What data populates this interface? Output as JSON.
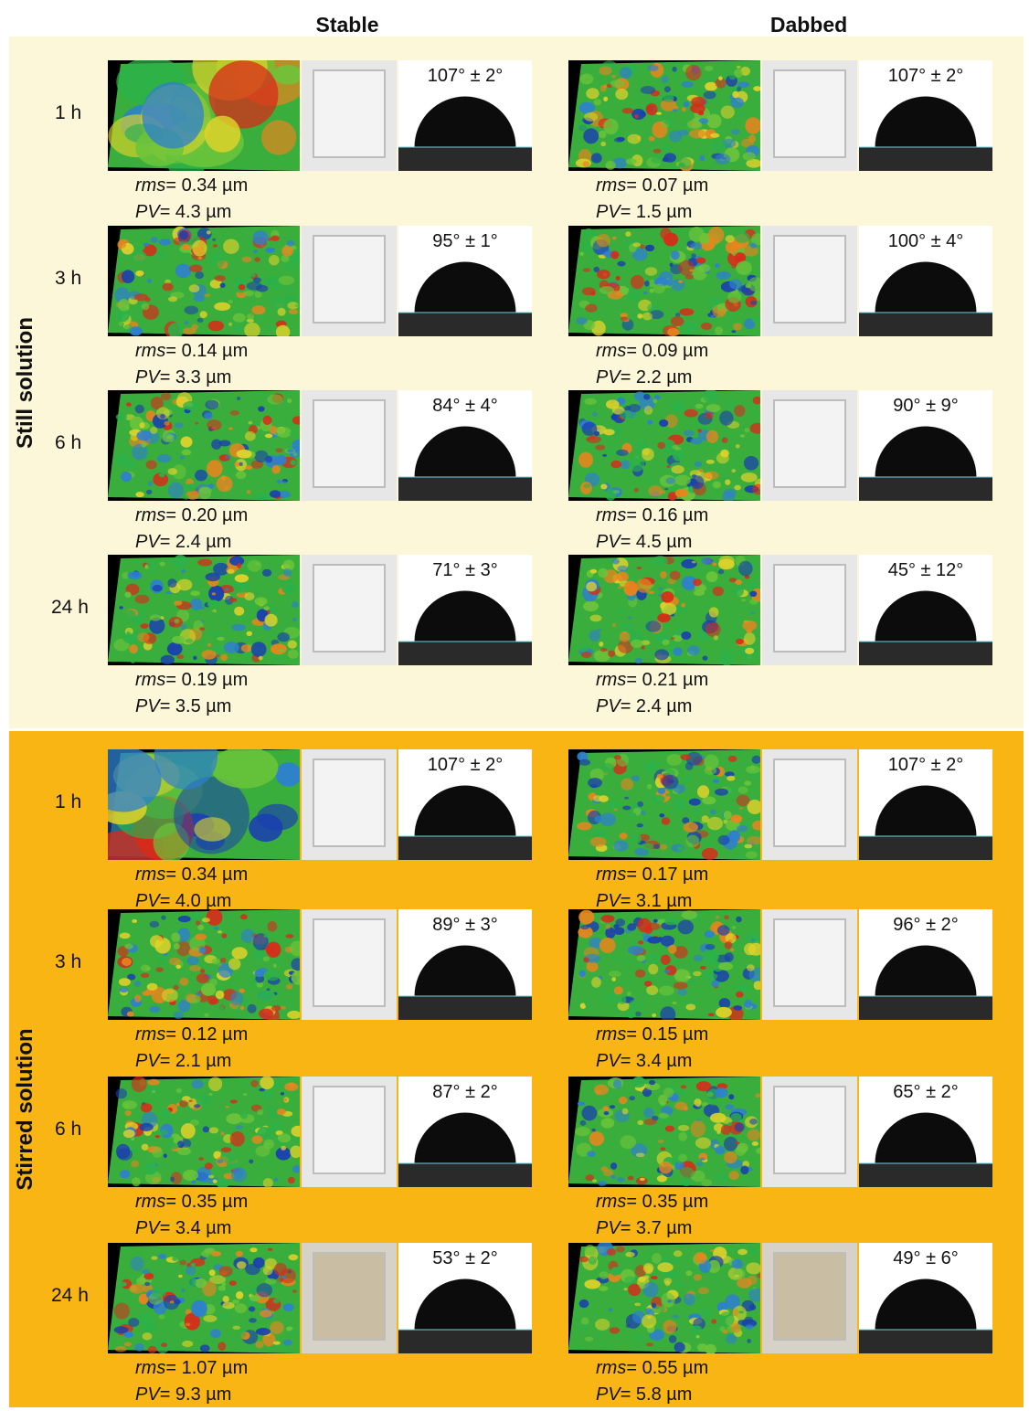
{
  "column_titles": {
    "stable": "Stable",
    "dabbed": "Dabbed"
  },
  "sections": [
    {
      "label": "Still solution",
      "rows": [
        {
          "time": "1 h",
          "stable": {
            "angle": "107° ± 2°",
            "rms": "= 0.34 µm",
            "pv": "= 4.3 µm"
          },
          "dabbed": {
            "angle": "107° ± 2°",
            "rms": "= 0.07 µm",
            "pv": "= 1.5 µm"
          }
        },
        {
          "time": "3 h",
          "stable": {
            "angle": "95° ± 1°",
            "rms": "= 0.14 µm",
            "pv": "= 3.3 µm"
          },
          "dabbed": {
            "angle": "100° ± 4°",
            "rms": "= 0.09 µm",
            "pv": "= 2.2 µm"
          }
        },
        {
          "time": "6 h",
          "stable": {
            "angle": "84° ± 4°",
            "rms": "= 0.20 µm",
            "pv": "= 2.4 µm"
          },
          "dabbed": {
            "angle": "90° ± 9°",
            "rms": "= 0.16 µm",
            "pv": "= 4.5 µm"
          }
        },
        {
          "time": "24 h",
          "stable": {
            "angle": "71° ± 3°",
            "rms": "= 0.19 µm",
            "pv": "= 3.5 µm"
          },
          "dabbed": {
            "angle": "45° ± 12°",
            "rms": "= 0.21 µm",
            "pv": "= 2.4 µm"
          }
        }
      ]
    },
    {
      "label": "Stirred solution",
      "rows": [
        {
          "time": "1 h",
          "stable": {
            "angle": "107° ± 2°",
            "rms": "= 0.34 µm",
            "pv": "= 4.0 µm"
          },
          "dabbed": {
            "angle": "107° ± 2°",
            "rms": "= 0.17 µm",
            "pv": "= 3.1 µm"
          }
        },
        {
          "time": "3 h",
          "stable": {
            "angle": "89° ± 3°",
            "rms": "= 0.12 µm",
            "pv": "= 2.1 µm"
          },
          "dabbed": {
            "angle": "96° ± 2°",
            "rms": "= 0.15 µm",
            "pv": "= 3.4 µm"
          }
        },
        {
          "time": "6 h",
          "stable": {
            "angle": "87° ± 2°",
            "rms": "= 0.35 µm",
            "pv": "= 3.4 µm"
          },
          "dabbed": {
            "angle": "65° ± 2°",
            "rms": "= 0.35 µm",
            "pv": "= 3.7 µm"
          }
        },
        {
          "time": "24 h",
          "stable": {
            "angle": "53° ± 2°",
            "rms": "= 1.07 µm",
            "pv": "= 9.3 µm"
          },
          "dabbed": {
            "angle": "49° ± 6°",
            "rms": "= 0.55 µm",
            "pv": "= 5.8 µm"
          }
        }
      ]
    }
  ],
  "labels": {
    "rms": "rms",
    "pv": "PV"
  },
  "colors": {
    "still_bg": "#fcf7d8",
    "stirred_bg": "#f9b514"
  }
}
